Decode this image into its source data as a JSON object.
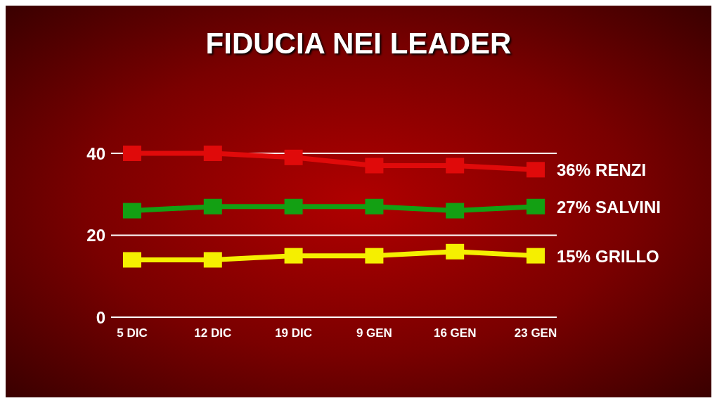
{
  "chart_data": {
    "type": "line",
    "title": "FIDUCIA NEI LEADER",
    "categories": [
      "5 DIC",
      "12 DIC",
      "19 DIC",
      "9 GEN",
      "16 GEN",
      "23 GEN"
    ],
    "series": [
      {
        "name": "RENZI",
        "color": "#e00a0a",
        "values": [
          40,
          40,
          39,
          37,
          37,
          36
        ],
        "value_labels": [
          null,
          null,
          null,
          null,
          null,
          "36%"
        ]
      },
      {
        "name": "SALVINI",
        "color": "#13a013",
        "values": [
          26,
          27,
          27,
          27,
          26,
          27
        ],
        "value_labels": [
          null,
          null,
          null,
          null,
          null,
          "27%"
        ]
      },
      {
        "name": "GRILLO",
        "color": "#f5ef00",
        "values": [
          14,
          14,
          15,
          15,
          16,
          15
        ],
        "value_labels": [
          null,
          null,
          null,
          null,
          null,
          "15%"
        ]
      }
    ],
    "ylim": [
      0,
      40
    ],
    "yticks": [
      0,
      20,
      40
    ],
    "grid": "y",
    "marker": "square",
    "line_style": "solid"
  }
}
